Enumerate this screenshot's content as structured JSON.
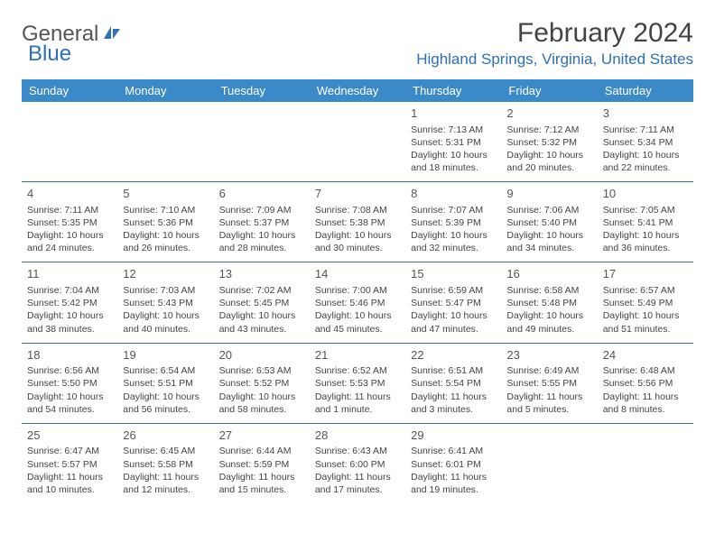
{
  "logo": {
    "text1": "General",
    "text2": "Blue"
  },
  "title": "February 2024",
  "location": "Highland Springs, Virginia, United States",
  "colors": {
    "header_bg": "#3a8ac9",
    "header_fg": "#ffffff",
    "accent": "#2d6fb8",
    "rule": "#3a6da0",
    "text": "#444444",
    "logo_gray": "#555555"
  },
  "dow": [
    "Sunday",
    "Monday",
    "Tuesday",
    "Wednesday",
    "Thursday",
    "Friday",
    "Saturday"
  ],
  "first_dow": 4,
  "days_in_month": 29,
  "days": {
    "1": {
      "sunrise": "7:13 AM",
      "sunset": "5:31 PM",
      "daylight": "10 hours and 18 minutes."
    },
    "2": {
      "sunrise": "7:12 AM",
      "sunset": "5:32 PM",
      "daylight": "10 hours and 20 minutes."
    },
    "3": {
      "sunrise": "7:11 AM",
      "sunset": "5:34 PM",
      "daylight": "10 hours and 22 minutes."
    },
    "4": {
      "sunrise": "7:11 AM",
      "sunset": "5:35 PM",
      "daylight": "10 hours and 24 minutes."
    },
    "5": {
      "sunrise": "7:10 AM",
      "sunset": "5:36 PM",
      "daylight": "10 hours and 26 minutes."
    },
    "6": {
      "sunrise": "7:09 AM",
      "sunset": "5:37 PM",
      "daylight": "10 hours and 28 minutes."
    },
    "7": {
      "sunrise": "7:08 AM",
      "sunset": "5:38 PM",
      "daylight": "10 hours and 30 minutes."
    },
    "8": {
      "sunrise": "7:07 AM",
      "sunset": "5:39 PM",
      "daylight": "10 hours and 32 minutes."
    },
    "9": {
      "sunrise": "7:06 AM",
      "sunset": "5:40 PM",
      "daylight": "10 hours and 34 minutes."
    },
    "10": {
      "sunrise": "7:05 AM",
      "sunset": "5:41 PM",
      "daylight": "10 hours and 36 minutes."
    },
    "11": {
      "sunrise": "7:04 AM",
      "sunset": "5:42 PM",
      "daylight": "10 hours and 38 minutes."
    },
    "12": {
      "sunrise": "7:03 AM",
      "sunset": "5:43 PM",
      "daylight": "10 hours and 40 minutes."
    },
    "13": {
      "sunrise": "7:02 AM",
      "sunset": "5:45 PM",
      "daylight": "10 hours and 43 minutes."
    },
    "14": {
      "sunrise": "7:00 AM",
      "sunset": "5:46 PM",
      "daylight": "10 hours and 45 minutes."
    },
    "15": {
      "sunrise": "6:59 AM",
      "sunset": "5:47 PM",
      "daylight": "10 hours and 47 minutes."
    },
    "16": {
      "sunrise": "6:58 AM",
      "sunset": "5:48 PM",
      "daylight": "10 hours and 49 minutes."
    },
    "17": {
      "sunrise": "6:57 AM",
      "sunset": "5:49 PM",
      "daylight": "10 hours and 51 minutes."
    },
    "18": {
      "sunrise": "6:56 AM",
      "sunset": "5:50 PM",
      "daylight": "10 hours and 54 minutes."
    },
    "19": {
      "sunrise": "6:54 AM",
      "sunset": "5:51 PM",
      "daylight": "10 hours and 56 minutes."
    },
    "20": {
      "sunrise": "6:53 AM",
      "sunset": "5:52 PM",
      "daylight": "10 hours and 58 minutes."
    },
    "21": {
      "sunrise": "6:52 AM",
      "sunset": "5:53 PM",
      "daylight": "11 hours and 1 minute."
    },
    "22": {
      "sunrise": "6:51 AM",
      "sunset": "5:54 PM",
      "daylight": "11 hours and 3 minutes."
    },
    "23": {
      "sunrise": "6:49 AM",
      "sunset": "5:55 PM",
      "daylight": "11 hours and 5 minutes."
    },
    "24": {
      "sunrise": "6:48 AM",
      "sunset": "5:56 PM",
      "daylight": "11 hours and 8 minutes."
    },
    "25": {
      "sunrise": "6:47 AM",
      "sunset": "5:57 PM",
      "daylight": "11 hours and 10 minutes."
    },
    "26": {
      "sunrise": "6:45 AM",
      "sunset": "5:58 PM",
      "daylight": "11 hours and 12 minutes."
    },
    "27": {
      "sunrise": "6:44 AM",
      "sunset": "5:59 PM",
      "daylight": "11 hours and 15 minutes."
    },
    "28": {
      "sunrise": "6:43 AM",
      "sunset": "6:00 PM",
      "daylight": "11 hours and 17 minutes."
    },
    "29": {
      "sunrise": "6:41 AM",
      "sunset": "6:01 PM",
      "daylight": "11 hours and 19 minutes."
    }
  },
  "labels": {
    "sunrise": "Sunrise:",
    "sunset": "Sunset:",
    "daylight": "Daylight:"
  }
}
